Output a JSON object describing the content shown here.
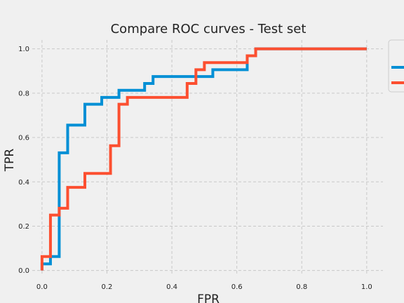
{
  "chart_data": {
    "type": "line",
    "title": "Compare ROC curves - Test set",
    "xlabel": "FPR",
    "ylabel": "TPR",
    "xlim": [
      -0.03,
      1.05
    ],
    "ylim": [
      -0.02,
      1.04
    ],
    "xticks": [
      0.0,
      0.2,
      0.4,
      0.6,
      0.8,
      1.0
    ],
    "xtick_labels": [
      "0.0",
      "0.2",
      "0.4",
      "0.6",
      "0.8",
      "1.0"
    ],
    "yticks": [
      0.0,
      0.2,
      0.4,
      0.6,
      0.8,
      1.0
    ],
    "ytick_labels": [
      "0.0",
      "0.2",
      "0.4",
      "0.6",
      "0.8",
      "1.0"
    ],
    "grid": true,
    "legend_position": "top-right",
    "series": [
      {
        "color": "#008fd5",
        "steps": [
          [
            0.0,
            0.0
          ],
          [
            0.0,
            0.03
          ],
          [
            0.026,
            0.03
          ],
          [
            0.026,
            0.063
          ],
          [
            0.053,
            0.063
          ],
          [
            0.053,
            0.531
          ],
          [
            0.079,
            0.531
          ],
          [
            0.079,
            0.656
          ],
          [
            0.132,
            0.656
          ],
          [
            0.132,
            0.75
          ],
          [
            0.184,
            0.75
          ],
          [
            0.184,
            0.781
          ],
          [
            0.237,
            0.781
          ],
          [
            0.237,
            0.813
          ],
          [
            0.316,
            0.813
          ],
          [
            0.316,
            0.844
          ],
          [
            0.342,
            0.844
          ],
          [
            0.342,
            0.875
          ],
          [
            0.526,
            0.875
          ],
          [
            0.526,
            0.906
          ],
          [
            0.632,
            0.906
          ],
          [
            0.632,
            0.969
          ],
          [
            0.658,
            0.969
          ],
          [
            0.658,
            1.0
          ],
          [
            1.0,
            1.0
          ]
        ]
      },
      {
        "color": "#fc4f30",
        "steps": [
          [
            0.0,
            0.0
          ],
          [
            0.0,
            0.063
          ],
          [
            0.026,
            0.063
          ],
          [
            0.026,
            0.25
          ],
          [
            0.053,
            0.25
          ],
          [
            0.053,
            0.281
          ],
          [
            0.079,
            0.281
          ],
          [
            0.079,
            0.375
          ],
          [
            0.132,
            0.375
          ],
          [
            0.132,
            0.438
          ],
          [
            0.211,
            0.438
          ],
          [
            0.211,
            0.563
          ],
          [
            0.237,
            0.563
          ],
          [
            0.237,
            0.75
          ],
          [
            0.263,
            0.75
          ],
          [
            0.263,
            0.781
          ],
          [
            0.447,
            0.781
          ],
          [
            0.447,
            0.844
          ],
          [
            0.474,
            0.844
          ],
          [
            0.474,
            0.906
          ],
          [
            0.5,
            0.906
          ],
          [
            0.5,
            0.938
          ],
          [
            0.632,
            0.938
          ],
          [
            0.632,
            0.969
          ],
          [
            0.658,
            0.969
          ],
          [
            0.658,
            1.0
          ],
          [
            1.0,
            1.0
          ]
        ]
      }
    ]
  }
}
